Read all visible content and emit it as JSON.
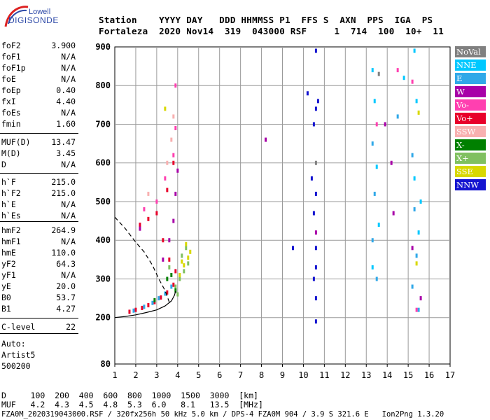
{
  "logo": {
    "top": "Lowell",
    "main": "DIGISONDE"
  },
  "header": {
    "line1": "Station    YYYY DAY   DDD HHMMSS P1  FFS S  AXN  PPS  IGA  PS",
    "line2": "Fortaleza  2020 Nov14  319  043000 RSF     1  714  100  10+  11"
  },
  "parameters_a": [
    {
      "name": "foF2",
      "value": "3.900"
    },
    {
      "name": "foF1",
      "value": "N/A"
    },
    {
      "name": "foF1p",
      "value": "N/A"
    },
    {
      "name": "foE",
      "value": "N/A"
    },
    {
      "name": "foEp",
      "value": "0.40"
    },
    {
      "name": "fxI",
      "value": "4.40"
    },
    {
      "name": "foEs",
      "value": "N/A"
    },
    {
      "name": "fmin",
      "value": "1.60"
    }
  ],
  "parameters_b": [
    {
      "name": "MUF(D)",
      "value": "13.47"
    },
    {
      "name": "M(D)",
      "value": "3.45"
    },
    {
      "name": "D",
      "value": "N/A"
    }
  ],
  "parameters_c": [
    {
      "name": "h`F",
      "value": "215.0"
    },
    {
      "name": "h`F2",
      "value": "215.0"
    },
    {
      "name": "h`E",
      "value": "N/A"
    },
    {
      "name": "h`Es",
      "value": "N/A"
    }
  ],
  "parameters_d": [
    {
      "name": "hmF2",
      "value": "264.9"
    },
    {
      "name": "hmF1",
      "value": "N/A"
    },
    {
      "name": "hmE",
      "value": "110.0"
    },
    {
      "name": "yF2",
      "value": "64.3"
    },
    {
      "name": "yF1",
      "value": "N/A"
    },
    {
      "name": "yE",
      "value": "20.0"
    },
    {
      "name": "B0",
      "value": "53.7"
    },
    {
      "name": "B1",
      "value": "4.27"
    }
  ],
  "parameters_e": [
    {
      "name": "C-level",
      "value": "22"
    }
  ],
  "autoscale": {
    "line1": "Auto:",
    "line2": "Artist5",
    "line3": "500200"
  },
  "footer": {
    "line1": "D     100  200  400  600  800  1000  1500  3000  [km]",
    "line2": "MUF   4.2  4.3  4.5  4.8  5.3  6.0   8.1   13.5  [MHz]",
    "line3": "FZA0M_2020319043000.RSF / 320fx256h 50 kHz 5.0 km / DPS-4 FZA0M 904 / 3.9 S 321.6 E   Ion2Png 1.3.20"
  },
  "legend": [
    {
      "label": "NoVal",
      "color": "#808080"
    },
    {
      "label": "NNE",
      "color": "#00c8ff"
    },
    {
      "label": "E",
      "color": "#30a8e8"
    },
    {
      "label": "W",
      "color": "#a800a8"
    },
    {
      "label": "Vo-",
      "color": "#ff40b0"
    },
    {
      "label": "Vo+",
      "color": "#e8002a"
    },
    {
      "label": "SSW",
      "color": "#f8b0b0"
    },
    {
      "label": "X-",
      "color": "#008000"
    },
    {
      "label": "X+",
      "color": "#80c060"
    },
    {
      "label": "SSE",
      "color": "#d8d800"
    },
    {
      "label": "NNW",
      "color": "#1414d0"
    }
  ],
  "chart_data": {
    "type": "scatter",
    "title": "",
    "xlabel": "",
    "ylabel": "",
    "xlim": [
      1,
      17
    ],
    "ylim": [
      80,
      900
    ],
    "x_ticks": [
      1,
      2,
      3,
      4,
      5,
      6,
      7,
      8,
      9,
      10,
      11,
      12,
      13,
      14,
      15,
      16,
      17
    ],
    "y_ticks": [
      80,
      200,
      300,
      400,
      500,
      600,
      700,
      800,
      900
    ],
    "grid": true,
    "series": [
      {
        "name": "Vo+",
        "color": "#e8002a",
        "points": [
          [
            1.7,
            215
          ],
          [
            2.0,
            220
          ],
          [
            2.3,
            225
          ],
          [
            2.6,
            232
          ],
          [
            2.9,
            240
          ],
          [
            3.2,
            252
          ],
          [
            3.5,
            265
          ],
          [
            3.8,
            285
          ],
          [
            3.9,
            320
          ],
          [
            2.2,
            440
          ],
          [
            2.6,
            455
          ],
          [
            3.0,
            470
          ],
          [
            3.5,
            530
          ],
          [
            3.8,
            600
          ],
          [
            3.3,
            400
          ],
          [
            3.6,
            350
          ]
        ]
      },
      {
        "name": "E",
        "color": "#30a8e8",
        "points": [
          [
            1.9,
            218
          ],
          [
            2.4,
            228
          ],
          [
            2.8,
            238
          ],
          [
            3.1,
            250
          ],
          [
            3.4,
            262
          ],
          [
            3.7,
            280
          ],
          [
            13.3,
            650
          ],
          [
            13.4,
            520
          ],
          [
            13.3,
            400
          ],
          [
            13.5,
            300
          ],
          [
            15.2,
            620
          ],
          [
            15.3,
            480
          ],
          [
            15.4,
            360
          ],
          [
            15.2,
            280
          ],
          [
            15.5,
            220
          ],
          [
            14.5,
            720
          ]
        ]
      },
      {
        "name": "NNE",
        "color": "#00c8ff",
        "points": [
          [
            13.3,
            840
          ],
          [
            13.4,
            760
          ],
          [
            13.5,
            590
          ],
          [
            13.6,
            440
          ],
          [
            13.3,
            330
          ],
          [
            14.8,
            820
          ],
          [
            15.3,
            890
          ],
          [
            15.4,
            760
          ],
          [
            15.3,
            560
          ],
          [
            15.5,
            420
          ],
          [
            15.6,
            500
          ]
        ]
      },
      {
        "name": "X+",
        "color": "#80c060",
        "points": [
          [
            3.9,
            280
          ],
          [
            4.1,
            300
          ],
          [
            4.3,
            320
          ],
          [
            4.5,
            340
          ],
          [
            4.2,
            360
          ],
          [
            4.4,
            380
          ],
          [
            4.0,
            260
          ],
          [
            3.6,
            330
          ]
        ]
      },
      {
        "name": "SSE",
        "color": "#d8d800",
        "points": [
          [
            4.1,
            310
          ],
          [
            4.3,
            335
          ],
          [
            4.5,
            355
          ],
          [
            4.6,
            370
          ],
          [
            4.4,
            390
          ],
          [
            4.2,
            345
          ],
          [
            3.4,
            740
          ],
          [
            15.5,
            730
          ],
          [
            15.4,
            340
          ]
        ]
      },
      {
        "name": "W",
        "color": "#a800a8",
        "points": [
          [
            3.3,
            350
          ],
          [
            3.6,
            400
          ],
          [
            3.8,
            450
          ],
          [
            3.9,
            520
          ],
          [
            4.0,
            580
          ],
          [
            2.2,
            430
          ],
          [
            8.2,
            660
          ],
          [
            10.6,
            420
          ],
          [
            13.9,
            700
          ],
          [
            14.2,
            600
          ],
          [
            14.3,
            470
          ],
          [
            15.2,
            380
          ],
          [
            15.6,
            250
          ]
        ]
      },
      {
        "name": "Vo-",
        "color": "#ff40b0",
        "points": [
          [
            3.0,
            500
          ],
          [
            3.4,
            560
          ],
          [
            3.8,
            620
          ],
          [
            3.9,
            690
          ],
          [
            3.9,
            800
          ],
          [
            2.4,
            480
          ],
          [
            13.5,
            700
          ],
          [
            14.5,
            840
          ],
          [
            15.4,
            220
          ],
          [
            15.2,
            810
          ]
        ]
      },
      {
        "name": "SSW",
        "color": "#f8b0b0",
        "points": [
          [
            3.5,
            600
          ],
          [
            3.7,
            660
          ],
          [
            3.8,
            720
          ],
          [
            2.6,
            520
          ]
        ]
      },
      {
        "name": "X-",
        "color": "#008000",
        "points": [
          [
            3.5,
            300
          ],
          [
            3.7,
            310
          ],
          [
            3.9,
            270
          ],
          [
            2.9,
            245
          ]
        ]
      },
      {
        "name": "NNW",
        "color": "#1414d0",
        "points": [
          [
            10.6,
            890
          ],
          [
            10.6,
            740
          ],
          [
            10.7,
            760
          ],
          [
            10.5,
            700
          ],
          [
            10.4,
            560
          ],
          [
            10.6,
            520
          ],
          [
            10.5,
            470
          ],
          [
            10.6,
            380
          ],
          [
            10.6,
            330
          ],
          [
            10.5,
            300
          ],
          [
            10.6,
            250
          ],
          [
            10.6,
            190
          ],
          [
            9.5,
            380
          ],
          [
            10.2,
            780
          ]
        ]
      },
      {
        "name": "NoVal",
        "color": "#808080",
        "points": [
          [
            13.6,
            830
          ],
          [
            10.6,
            600
          ]
        ]
      }
    ],
    "fitted_curves": [
      {
        "name": "trace-fit",
        "style": "solid",
        "points": [
          [
            1.0,
            200
          ],
          [
            1.5,
            203
          ],
          [
            2.0,
            207
          ],
          [
            2.5,
            213
          ],
          [
            3.0,
            220
          ],
          [
            3.4,
            230
          ],
          [
            3.7,
            243
          ],
          [
            3.85,
            258
          ],
          [
            3.9,
            268
          ]
        ]
      },
      {
        "name": "profile-dashed",
        "style": "dashed",
        "points": [
          [
            1.0,
            460
          ],
          [
            1.5,
            430
          ],
          [
            2.0,
            395
          ],
          [
            2.4,
            370
          ],
          [
            2.8,
            335
          ],
          [
            3.1,
            300
          ],
          [
            3.4,
            270
          ],
          [
            3.6,
            240
          ]
        ]
      }
    ]
  }
}
